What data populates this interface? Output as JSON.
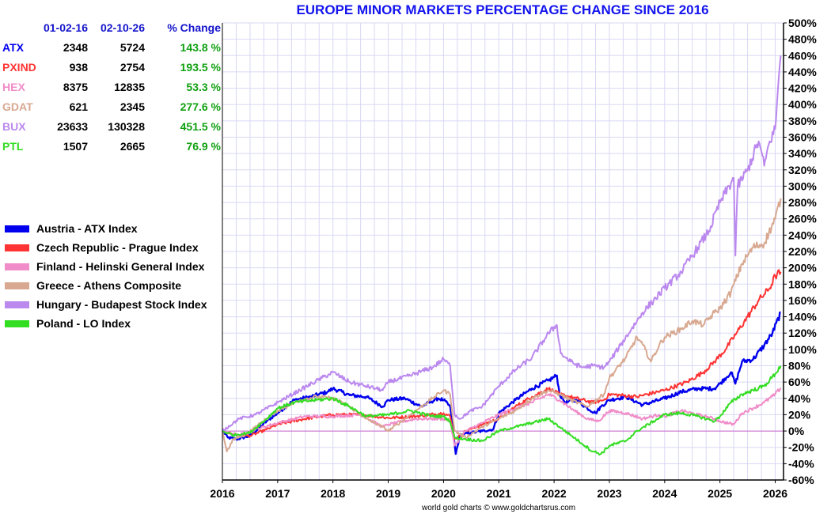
{
  "chart_data": {
    "type": "line",
    "title": "EUROPE MINOR MARKETS PERCENTAGE CHANGE SINCE 2016",
    "credit": "world gold charts © www.goldchartsrus.com",
    "xlabel": "",
    "ylabel": "",
    "xlim": [
      2016,
      2026.15
    ],
    "ylim": [
      -60,
      500
    ],
    "grid": true,
    "legend_position": "left",
    "x_ticks": [
      "2016",
      "2017",
      "2018",
      "2019",
      "2020",
      "2021",
      "2022",
      "2023",
      "2024",
      "2025",
      "2026"
    ],
    "y_ticks": [
      "500%",
      "480%",
      "460%",
      "440%",
      "420%",
      "400%",
      "380%",
      "360%",
      "340%",
      "320%",
      "300%",
      "280%",
      "260%",
      "240%",
      "220%",
      "200%",
      "180%",
      "160%",
      "140%",
      "120%",
      "100%",
      "80%",
      "60%",
      "40%",
      "20%",
      "0%",
      "-20%",
      "-40%",
      "-60%"
    ],
    "table": {
      "headers": [
        "",
        "01-02-16",
        "02-10-26",
        "% Change"
      ],
      "rows": [
        {
          "symbol": "ATX",
          "start": "2348",
          "end": "5724",
          "change": "143.8 %",
          "color": "#0000ee"
        },
        {
          "symbol": "PXIND",
          "start": "938",
          "end": "2754",
          "change": "193.5 %",
          "color": "#ff3333"
        },
        {
          "symbol": "HEX",
          "start": "8375",
          "end": "12835",
          "change": "53.3 %",
          "color": "#f08cc8"
        },
        {
          "symbol": "GDAT",
          "start": "621",
          "end": "2345",
          "change": "277.6 %",
          "color": "#d8a890"
        },
        {
          "symbol": "BUX",
          "start": "23633",
          "end": "130328",
          "change": "451.5 %",
          "color": "#bb88ee"
        },
        {
          "symbol": "PTL",
          "start": "1507",
          "end": "2665",
          "change": "76.9 %",
          "color": "#33dd22"
        }
      ]
    },
    "series": [
      {
        "name": "Austria - ATX Index",
        "color": "#0000ee",
        "points": [
          [
            2016,
            0
          ],
          [
            2016.1,
            -8
          ],
          [
            2016.25,
            -10
          ],
          [
            2016.5,
            -6
          ],
          [
            2016.8,
            12
          ],
          [
            2017,
            22
          ],
          [
            2017.3,
            38
          ],
          [
            2017.6,
            42
          ],
          [
            2017.9,
            48
          ],
          [
            2018,
            52
          ],
          [
            2018.3,
            44
          ],
          [
            2018.6,
            42
          ],
          [
            2018.9,
            30
          ],
          [
            2019,
            38
          ],
          [
            2019.3,
            40
          ],
          [
            2019.6,
            30
          ],
          [
            2019.9,
            40
          ],
          [
            2020,
            38
          ],
          [
            2020.12,
            30
          ],
          [
            2020.18,
            -5
          ],
          [
            2020.22,
            -28
          ],
          [
            2020.3,
            -5
          ],
          [
            2020.5,
            -2
          ],
          [
            2020.7,
            0
          ],
          [
            2020.9,
            2
          ],
          [
            2021,
            22
          ],
          [
            2021.3,
            38
          ],
          [
            2021.6,
            52
          ],
          [
            2021.9,
            62
          ],
          [
            2022.05,
            68
          ],
          [
            2022.1,
            45
          ],
          [
            2022.2,
            35
          ],
          [
            2022.4,
            38
          ],
          [
            2022.6,
            28
          ],
          [
            2022.75,
            22
          ],
          [
            2022.85,
            30
          ],
          [
            2023,
            38
          ],
          [
            2023.3,
            42
          ],
          [
            2023.6,
            32
          ],
          [
            2023.9,
            38
          ],
          [
            2024,
            40
          ],
          [
            2024.3,
            48
          ],
          [
            2024.6,
            52
          ],
          [
            2024.9,
            52
          ],
          [
            2025,
            58
          ],
          [
            2025.2,
            72
          ],
          [
            2025.28,
            58
          ],
          [
            2025.4,
            85
          ],
          [
            2025.6,
            88
          ],
          [
            2025.8,
            105
          ],
          [
            2025.95,
            120
          ],
          [
            2026.1,
            145
          ]
        ]
      },
      {
        "name": "Czech Republic - Prague Index",
        "color": "#ff3333",
        "points": [
          [
            2016,
            0
          ],
          [
            2016.2,
            -4
          ],
          [
            2016.5,
            -6
          ],
          [
            2016.8,
            2
          ],
          [
            2017,
            8
          ],
          [
            2017.5,
            15
          ],
          [
            2018,
            20
          ],
          [
            2018.5,
            20
          ],
          [
            2019,
            16
          ],
          [
            2019.5,
            18
          ],
          [
            2020,
            22
          ],
          [
            2020.12,
            18
          ],
          [
            2020.2,
            -10
          ],
          [
            2020.4,
            0
          ],
          [
            2020.7,
            8
          ],
          [
            2021,
            15
          ],
          [
            2021.3,
            30
          ],
          [
            2021.6,
            42
          ],
          [
            2021.9,
            52
          ],
          [
            2022.1,
            45
          ],
          [
            2022.4,
            40
          ],
          [
            2022.7,
            35
          ],
          [
            2022.9,
            38
          ],
          [
            2023,
            45
          ],
          [
            2023.5,
            42
          ],
          [
            2024,
            50
          ],
          [
            2024.4,
            60
          ],
          [
            2024.7,
            72
          ],
          [
            2024.9,
            85
          ],
          [
            2025.1,
            100
          ],
          [
            2025.3,
            120
          ],
          [
            2025.5,
            140
          ],
          [
            2025.7,
            160
          ],
          [
            2025.9,
            175
          ],
          [
            2026,
            190
          ],
          [
            2026.1,
            195
          ]
        ]
      },
      {
        "name": "Finland - Helinski General Index",
        "color": "#f08cc8",
        "points": [
          [
            2016,
            0
          ],
          [
            2016.3,
            -5
          ],
          [
            2016.6,
            2
          ],
          [
            2017,
            10
          ],
          [
            2017.5,
            18
          ],
          [
            2018,
            18
          ],
          [
            2018.5,
            20
          ],
          [
            2018.9,
            5
          ],
          [
            2019,
            8
          ],
          [
            2019.5,
            15
          ],
          [
            2020,
            15
          ],
          [
            2020.12,
            12
          ],
          [
            2020.2,
            -18
          ],
          [
            2020.4,
            0
          ],
          [
            2020.7,
            10
          ],
          [
            2021,
            20
          ],
          [
            2021.3,
            28
          ],
          [
            2021.6,
            35
          ],
          [
            2021.9,
            45
          ],
          [
            2022.1,
            38
          ],
          [
            2022.3,
            28
          ],
          [
            2022.6,
            15
          ],
          [
            2022.8,
            12
          ],
          [
            2023,
            25
          ],
          [
            2023.3,
            22
          ],
          [
            2023.6,
            15
          ],
          [
            2023.9,
            20
          ],
          [
            2024,
            18
          ],
          [
            2024.3,
            25
          ],
          [
            2024.6,
            20
          ],
          [
            2024.9,
            15
          ],
          [
            2025,
            12
          ],
          [
            2025.25,
            8
          ],
          [
            2025.4,
            22
          ],
          [
            2025.6,
            28
          ],
          [
            2025.8,
            35
          ],
          [
            2026,
            45
          ],
          [
            2026.1,
            53
          ]
        ]
      },
      {
        "name": "Greece - Athens Composite",
        "color": "#d8a890",
        "points": [
          [
            2016,
            0
          ],
          [
            2016.08,
            -25
          ],
          [
            2016.2,
            -10
          ],
          [
            2016.4,
            -5
          ],
          [
            2016.7,
            10
          ],
          [
            2017,
            25
          ],
          [
            2017.4,
            38
          ],
          [
            2017.7,
            42
          ],
          [
            2018,
            40
          ],
          [
            2018.3,
            30
          ],
          [
            2018.6,
            15
          ],
          [
            2018.9,
            5
          ],
          [
            2019,
            0
          ],
          [
            2019.4,
            20
          ],
          [
            2019.8,
            40
          ],
          [
            2020,
            50
          ],
          [
            2020.12,
            45
          ],
          [
            2020.2,
            0
          ],
          [
            2020.4,
            -8
          ],
          [
            2020.7,
            5
          ],
          [
            2021,
            15
          ],
          [
            2021.3,
            25
          ],
          [
            2021.6,
            40
          ],
          [
            2021.9,
            50
          ],
          [
            2022.1,
            45
          ],
          [
            2022.3,
            38
          ],
          [
            2022.6,
            30
          ],
          [
            2022.9,
            45
          ],
          [
            2023,
            65
          ],
          [
            2023.3,
            90
          ],
          [
            2023.5,
            115
          ],
          [
            2023.65,
            100
          ],
          [
            2023.75,
            85
          ],
          [
            2023.9,
            105
          ],
          [
            2024,
            115
          ],
          [
            2024.3,
            125
          ],
          [
            2024.5,
            135
          ],
          [
            2024.7,
            130
          ],
          [
            2024.9,
            145
          ],
          [
            2025,
            150
          ],
          [
            2025.2,
            170
          ],
          [
            2025.4,
            205
          ],
          [
            2025.6,
            225
          ],
          [
            2025.8,
            230
          ],
          [
            2026,
            260
          ],
          [
            2026.1,
            285
          ]
        ]
      },
      {
        "name": "Hungary - Budapest Stock Index",
        "color": "#bb88ee",
        "points": [
          [
            2016,
            0
          ],
          [
            2016.3,
            15
          ],
          [
            2016.6,
            20
          ],
          [
            2017,
            35
          ],
          [
            2017.4,
            50
          ],
          [
            2017.8,
            65
          ],
          [
            2018,
            72
          ],
          [
            2018.3,
            60
          ],
          [
            2018.6,
            55
          ],
          [
            2018.9,
            50
          ],
          [
            2019,
            60
          ],
          [
            2019.4,
            68
          ],
          [
            2019.8,
            78
          ],
          [
            2020,
            88
          ],
          [
            2020.12,
            80
          ],
          [
            2020.2,
            20
          ],
          [
            2020.3,
            15
          ],
          [
            2020.5,
            25
          ],
          [
            2020.7,
            30
          ],
          [
            2021,
            55
          ],
          [
            2021.3,
            75
          ],
          [
            2021.6,
            90
          ],
          [
            2021.9,
            120
          ],
          [
            2022.05,
            130
          ],
          [
            2022.12,
            95
          ],
          [
            2022.3,
            85
          ],
          [
            2022.5,
            78
          ],
          [
            2022.7,
            80
          ],
          [
            2022.9,
            78
          ],
          [
            2023,
            85
          ],
          [
            2023.2,
            105
          ],
          [
            2023.4,
            125
          ],
          [
            2023.6,
            145
          ],
          [
            2023.8,
            160
          ],
          [
            2024,
            175
          ],
          [
            2024.3,
            195
          ],
          [
            2024.6,
            225
          ],
          [
            2024.8,
            245
          ],
          [
            2025,
            280
          ],
          [
            2025.25,
            310
          ],
          [
            2025.28,
            215
          ],
          [
            2025.32,
            300
          ],
          [
            2025.5,
            320
          ],
          [
            2025.7,
            355
          ],
          [
            2025.8,
            325
          ],
          [
            2025.9,
            355
          ],
          [
            2026,
            370
          ],
          [
            2026.05,
            420
          ],
          [
            2026.1,
            460
          ]
        ]
      },
      {
        "name": "Poland - LO Index",
        "color": "#33dd22",
        "points": [
          [
            2016,
            0
          ],
          [
            2016.2,
            -5
          ],
          [
            2016.5,
            -2
          ],
          [
            2016.8,
            15
          ],
          [
            2017,
            28
          ],
          [
            2017.3,
            35
          ],
          [
            2017.7,
            38
          ],
          [
            2018,
            40
          ],
          [
            2018.3,
            30
          ],
          [
            2018.6,
            18
          ],
          [
            2019,
            20
          ],
          [
            2019.4,
            25
          ],
          [
            2019.8,
            18
          ],
          [
            2020,
            18
          ],
          [
            2020.12,
            12
          ],
          [
            2020.2,
            -8
          ],
          [
            2020.4,
            -10
          ],
          [
            2020.7,
            -12
          ],
          [
            2021,
            0
          ],
          [
            2021.3,
            5
          ],
          [
            2021.6,
            10
          ],
          [
            2021.9,
            15
          ],
          [
            2022.1,
            5
          ],
          [
            2022.3,
            -5
          ],
          [
            2022.5,
            -15
          ],
          [
            2022.7,
            -25
          ],
          [
            2022.85,
            -28
          ],
          [
            2023,
            -18
          ],
          [
            2023.3,
            -12
          ],
          [
            2023.5,
            0
          ],
          [
            2023.8,
            12
          ],
          [
            2024,
            20
          ],
          [
            2024.3,
            22
          ],
          [
            2024.6,
            18
          ],
          [
            2024.9,
            12
          ],
          [
            2025,
            18
          ],
          [
            2025.2,
            35
          ],
          [
            2025.4,
            45
          ],
          [
            2025.6,
            50
          ],
          [
            2025.8,
            55
          ],
          [
            2026,
            70
          ],
          [
            2026.1,
            80
          ]
        ]
      }
    ]
  }
}
